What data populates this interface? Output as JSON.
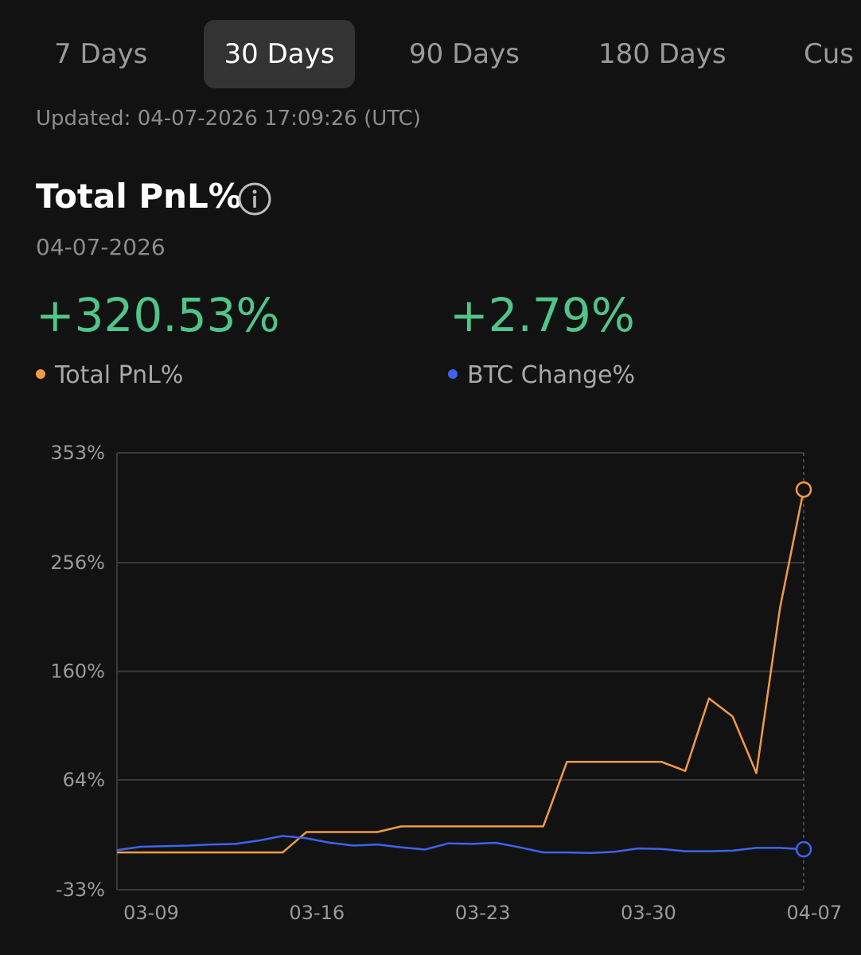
{
  "tabs": [
    "7 Days",
    "30 Days",
    "90 Days",
    "180 Days",
    "Cus"
  ],
  "active_tab": "30 Days",
  "updated_text": "Updated: 04-07-2026 17:09:26 (UTC)",
  "metric_title": "Total PnL%",
  "info_icon": "info-icon",
  "date": "04-07-2026",
  "values": {
    "total_pnl": "+320.53%",
    "btc_change": "+2.79%"
  },
  "legend": {
    "total_pnl": "Total PnL%",
    "btc_change": "BTC Change%"
  },
  "colors": {
    "background": "#121212",
    "positive": "#4fc58a",
    "pnl_line": "#f29a45",
    "btc_line": "#3d63f0",
    "grid": "#3a3a3a",
    "axis_text": "#9a9a9a"
  },
  "chart_data": {
    "type": "line",
    "title": "",
    "xlabel": "",
    "ylabel": "",
    "y_ticks": [
      "353%",
      "256%",
      "160%",
      "64%",
      "-33%"
    ],
    "y_tick_values": [
      353,
      256,
      160,
      64,
      -33
    ],
    "ylim": [
      -33,
      353
    ],
    "x_ticks": [
      "03-09",
      "03-16",
      "03-23",
      "03-30",
      "04-07"
    ],
    "x_tick_values": [
      0,
      7,
      14,
      21,
      28
    ],
    "x_unit": "days since 03-08",
    "xlim": [
      0,
      29
    ],
    "grid": true,
    "series": [
      {
        "name": "Total PnL%",
        "color": "#f29a45",
        "points": [
          [
            0,
            0
          ],
          [
            1,
            0
          ],
          [
            2,
            0
          ],
          [
            3,
            0
          ],
          [
            4,
            0
          ],
          [
            5,
            0
          ],
          [
            6,
            0
          ],
          [
            7,
            0
          ],
          [
            8,
            18
          ],
          [
            9,
            18
          ],
          [
            10,
            18
          ],
          [
            11,
            18
          ],
          [
            12,
            23
          ],
          [
            13,
            23
          ],
          [
            14,
            23
          ],
          [
            15,
            23
          ],
          [
            16,
            23
          ],
          [
            17,
            23
          ],
          [
            18,
            23
          ],
          [
            19,
            80
          ],
          [
            20,
            80
          ],
          [
            21,
            80
          ],
          [
            22,
            80
          ],
          [
            23,
            80
          ],
          [
            24,
            72
          ],
          [
            25,
            136
          ],
          [
            26,
            120
          ],
          [
            27,
            70
          ],
          [
            28,
            216
          ],
          [
            29,
            320.53
          ]
        ]
      },
      {
        "name": "BTC Change%",
        "color": "#3d63f0",
        "points": [
          [
            0,
            2
          ],
          [
            1,
            5
          ],
          [
            2,
            5.5
          ],
          [
            3,
            6
          ],
          [
            4,
            7
          ],
          [
            5,
            7.5
          ],
          [
            6,
            10.5
          ],
          [
            7,
            14.5
          ],
          [
            8,
            12.5
          ],
          [
            9,
            8.5
          ],
          [
            10,
            6
          ],
          [
            11,
            7
          ],
          [
            12,
            4.5
          ],
          [
            13,
            2.5
          ],
          [
            14,
            8
          ],
          [
            15,
            7.5
          ],
          [
            16,
            8.5
          ],
          [
            17,
            4.5
          ],
          [
            18,
            0
          ],
          [
            19,
            0
          ],
          [
            20,
            -0.5
          ],
          [
            21,
            0.5
          ],
          [
            22,
            3.5
          ],
          [
            23,
            3
          ],
          [
            24,
            1
          ],
          [
            25,
            1
          ],
          [
            26,
            1.5
          ],
          [
            27,
            4
          ],
          [
            28,
            4
          ],
          [
            29,
            2.79
          ]
        ]
      }
    ]
  }
}
